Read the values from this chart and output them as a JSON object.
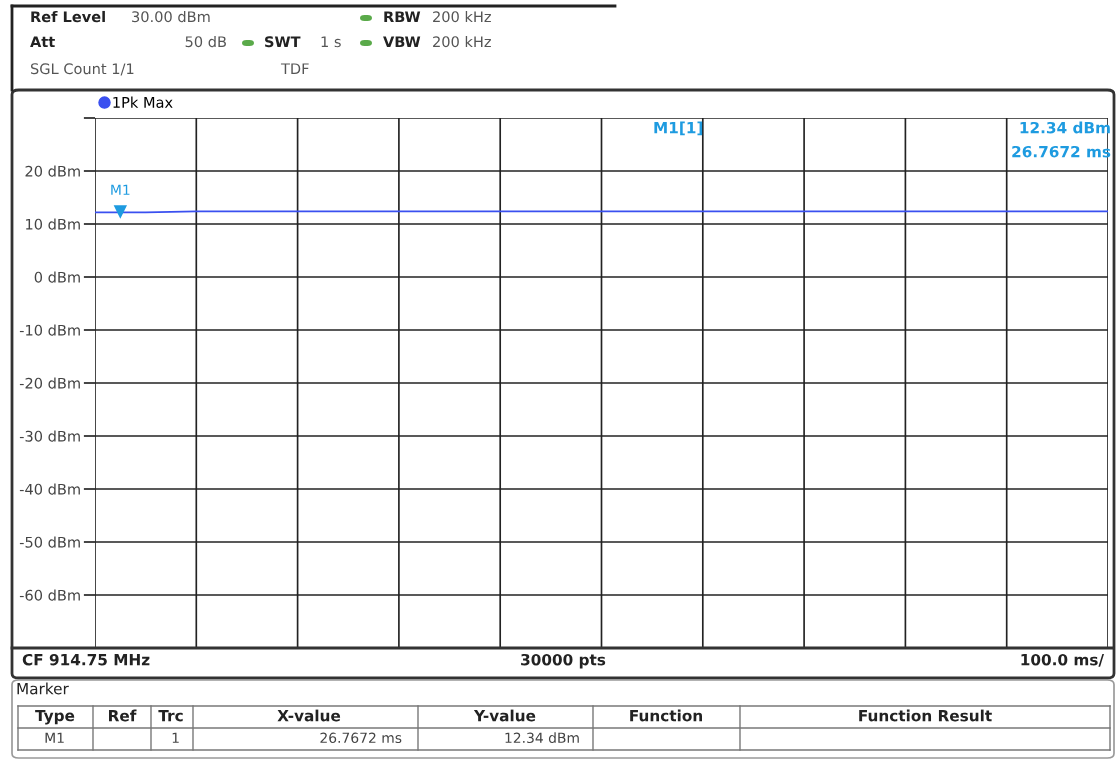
{
  "chart_data": {
    "type": "line",
    "categories": [
      null,
      null,
      null,
      null,
      null,
      null,
      null,
      null,
      null,
      null,
      null,
      null,
      null,
      null,
      null,
      null,
      null,
      null,
      null,
      null,
      null
    ],
    "series": [
      {
        "name": "1Pk Max",
        "color": "#3a50f0",
        "values": [
          12.2,
          12.2,
          12.4,
          12.4,
          12.4,
          12.4,
          12.4,
          12.4,
          12.4,
          12.4,
          12.4,
          12.4,
          12.4,
          12.4,
          12.4,
          12.4,
          12.4,
          12.4,
          12.4,
          12.4,
          12.4
        ]
      }
    ],
    "ylim": [
      -70,
      30
    ],
    "yticks": [
      {
        "value": -70,
        "label": null
      },
      {
        "value": -60,
        "label": "-60 dBm"
      },
      {
        "value": -50,
        "label": "-50 dBm"
      },
      {
        "value": -40,
        "label": "-40 dBm"
      },
      {
        "value": -30,
        "label": "-30 dBm"
      },
      {
        "value": -20,
        "label": "-20 dBm"
      },
      {
        "value": -10,
        "label": "-10 dBm"
      },
      {
        "value": 0,
        "label": "0 dBm"
      },
      {
        "value": 10,
        "label": "10 dBm"
      },
      {
        "value": 20,
        "label": "20 dBm"
      },
      {
        "value": 30,
        "label": null
      }
    ],
    "tick_labels": "y",
    "grid": true,
    "legend": "top left",
    "marker": "none",
    "line_style": "solid",
    "annotations": [
      "Ref Level",
      "30.00 dBm",
      "RBW",
      "200 kHz",
      "Att",
      "50 dB",
      "SWT",
      "1 s",
      "VBW",
      "200 kHz",
      "SGL Count 1/1",
      "TDF",
      "M1[1]",
      "12.34 dBm",
      "26.7672 ms",
      "CF 914.75 MHz",
      "30000 pts",
      "100.0 ms/",
      "Marker",
      "Type",
      "Ref",
      "Trc",
      "X-value",
      "Y-value",
      "Function",
      "Function Result",
      "M1",
      "1",
      "26.7672 ms",
      "12.34 dBm",
      {
        "text": "M1",
        "y": 12.34
      }
    ]
  }
}
